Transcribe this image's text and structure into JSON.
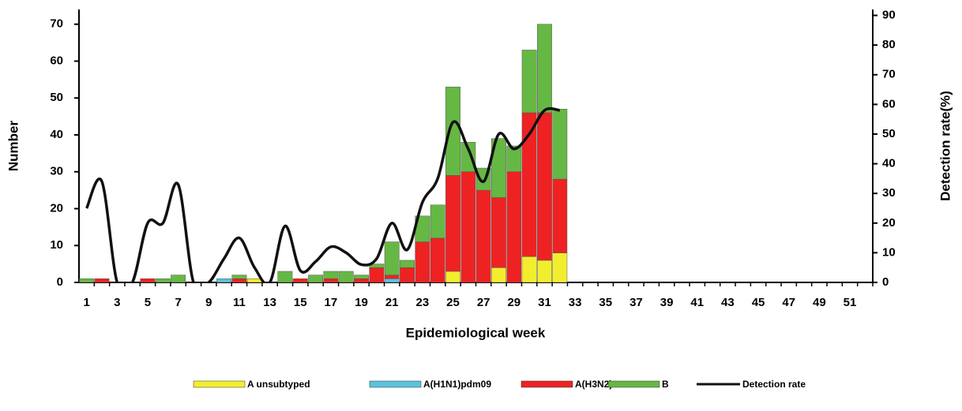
{
  "chart_data": {
    "type": "bar",
    "x_label": "Epidemiological week",
    "y_label": "Number",
    "y2_label": "Detection rate(%)",
    "categories": [
      1,
      null,
      3,
      null,
      5,
      null,
      7,
      null,
      9,
      null,
      11,
      null,
      13,
      null,
      15,
      null,
      17,
      null,
      19,
      null,
      21,
      null,
      23,
      null,
      25,
      null,
      27,
      null,
      29,
      null,
      31,
      null,
      33,
      null,
      35,
      null,
      37,
      null,
      39,
      null,
      41,
      null,
      43,
      null,
      45,
      null,
      47,
      null,
      49,
      null,
      51,
      null
    ],
    "ylim": [
      0,
      74
    ],
    "yticks": [
      0,
      10,
      20,
      30,
      40,
      50,
      60,
      70
    ],
    "y2lim": [
      0,
      92
    ],
    "y2ticks": [
      0,
      10,
      20,
      30,
      40,
      50,
      60,
      70,
      80,
      90
    ],
    "series": [
      {
        "name": "A unsubtyped",
        "color": "#f2ee2e",
        "values": [
          0,
          0,
          0,
          0,
          0,
          0,
          0,
          0,
          0,
          0,
          0,
          1,
          0,
          0,
          0,
          0,
          0,
          0,
          0,
          0,
          0,
          0,
          0,
          0,
          3,
          0,
          0,
          4,
          0,
          7,
          6,
          8,
          null,
          null,
          null,
          null,
          null,
          null,
          null,
          null,
          null,
          null,
          null,
          null,
          null,
          null,
          null,
          null,
          null,
          null,
          null,
          null
        ]
      },
      {
        "name": "A(H1N1)pdm09",
        "color": "#5bc3de",
        "values": [
          0,
          0,
          0,
          0,
          0,
          0,
          0,
          0,
          0,
          1,
          0,
          0,
          0,
          0,
          0,
          0,
          0,
          0,
          0,
          0,
          1,
          0,
          0,
          0,
          0,
          0,
          0,
          0,
          0,
          0,
          0,
          0,
          null,
          null,
          null,
          null,
          null,
          null,
          null,
          null,
          null,
          null,
          null,
          null,
          null,
          null,
          null,
          null,
          null,
          null,
          null,
          null
        ]
      },
      {
        "name": "A(H3N2)",
        "color": "#ee2222",
        "values": [
          0,
          1,
          0,
          0,
          1,
          0,
          0,
          0,
          0,
          0,
          1,
          0,
          0,
          0,
          1,
          0,
          1,
          0,
          1,
          4,
          1,
          4,
          11,
          12,
          26,
          30,
          25,
          19,
          30,
          39,
          40,
          20,
          null,
          null,
          null,
          null,
          null,
          null,
          null,
          null,
          null,
          null,
          null,
          null,
          null,
          null,
          null,
          null,
          null,
          null,
          null,
          null
        ]
      },
      {
        "name": "B",
        "color": "#66b844",
        "values": [
          1,
          0,
          0,
          0,
          0,
          1,
          2,
          0,
          0,
          0,
          1,
          0,
          0,
          3,
          0,
          2,
          2,
          3,
          1,
          1,
          9,
          2,
          7,
          9,
          24,
          8,
          6,
          16,
          7,
          17,
          24,
          19,
          null,
          null,
          null,
          null,
          null,
          null,
          null,
          null,
          null,
          null,
          null,
          null,
          null,
          null,
          null,
          null,
          null,
          null,
          null,
          null
        ]
      },
      {
        "name": "Detection rate",
        "color": "#111111",
        "type": "line",
        "axis": "y2",
        "values": [
          25,
          34,
          0,
          0,
          20,
          20,
          33,
          0,
          0,
          8,
          15,
          5,
          0,
          19,
          4,
          7,
          12,
          10,
          6,
          8,
          20,
          11,
          27,
          35,
          54,
          45,
          34,
          50,
          45,
          50,
          58,
          58,
          null,
          null,
          null,
          null,
          null,
          null,
          null,
          null,
          null,
          null,
          null,
          null,
          null,
          null,
          null,
          null,
          null,
          null,
          null,
          null
        ]
      }
    ]
  }
}
